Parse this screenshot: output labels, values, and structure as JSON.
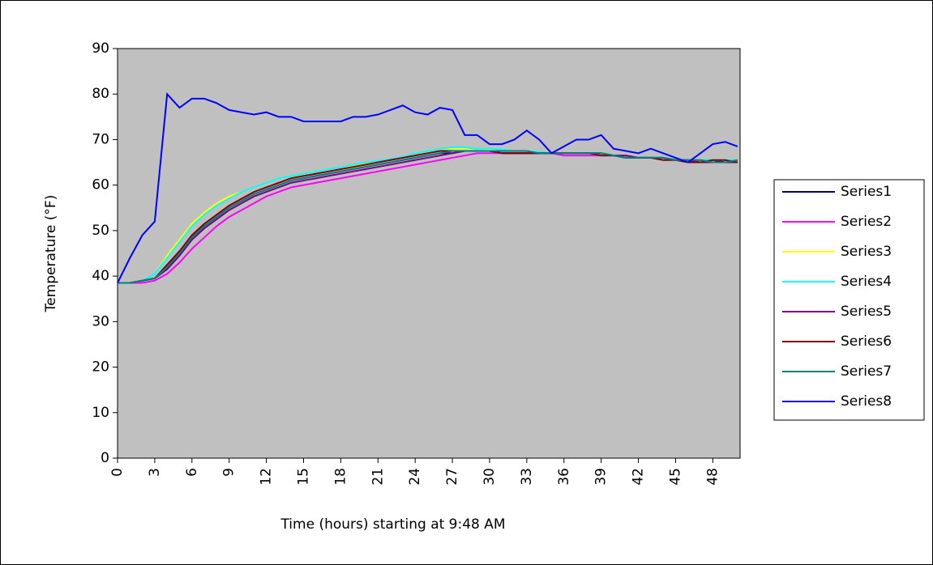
{
  "chart_data": {
    "type": "line",
    "x_label": "Time (hours) starting at 9:48 AM",
    "y_label": "Temperature (°F)",
    "x": [
      0,
      1,
      2,
      3,
      4,
      5,
      6,
      7,
      8,
      9,
      10,
      11,
      12,
      13,
      14,
      15,
      16,
      17,
      18,
      19,
      20,
      21,
      22,
      23,
      24,
      25,
      26,
      27,
      28,
      29,
      30,
      31,
      32,
      33,
      34,
      35,
      36,
      37,
      38,
      39,
      40,
      41,
      42,
      43,
      44,
      45,
      46,
      47,
      48,
      49,
      50
    ],
    "xlim": [
      0,
      50.2
    ],
    "xticks": [
      0,
      3,
      6,
      9,
      12,
      15,
      18,
      21,
      24,
      27,
      30,
      33,
      36,
      39,
      42,
      45,
      48
    ],
    "ylim": [
      0,
      90
    ],
    "yticks": [
      0,
      10,
      20,
      30,
      40,
      50,
      60,
      70,
      80,
      90
    ],
    "plot_background": "#c0c0c0",
    "legend": "right",
    "series": [
      {
        "name": "Series1",
        "color": "#000080",
        "values": [
          38.5,
          38.5,
          39,
          39.5,
          42,
          45,
          48.5,
          51,
          53,
          55,
          56.5,
          58,
          59,
          60,
          61,
          61.5,
          62,
          62.5,
          63,
          63.5,
          64,
          64.5,
          65,
          65.5,
          66,
          66.5,
          67,
          67,
          67.5,
          67.5,
          67.5,
          67,
          67,
          67,
          67,
          67,
          67,
          67,
          67,
          67,
          66.5,
          66.5,
          66,
          66,
          66,
          65.5,
          65.5,
          65.5,
          65.5,
          65,
          65
        ]
      },
      {
        "name": "Series2",
        "color": "#ff00ff",
        "values": [
          38.5,
          38.5,
          38.5,
          39,
          40.5,
          43,
          46,
          48.5,
          51,
          53,
          54.5,
          56,
          57.5,
          58.5,
          59.5,
          60,
          60.5,
          61,
          61.5,
          62,
          62.5,
          63,
          63.5,
          64,
          64.5,
          65,
          65.5,
          66,
          66.5,
          67,
          67,
          67,
          67,
          67,
          67,
          67,
          66.5,
          66.5,
          66.5,
          66.5,
          66.5,
          66,
          66,
          66,
          66,
          65.5,
          65.5,
          65,
          65,
          65,
          65
        ]
      },
      {
        "name": "Series3",
        "color": "#ffff00",
        "values": [
          38.5,
          38.5,
          39,
          40.5,
          44.5,
          48,
          51.5,
          54,
          56,
          57.5,
          58.5,
          59.5,
          60.5,
          61.5,
          62,
          62.5,
          63,
          63.5,
          64,
          64.3,
          64.7,
          65,
          65.5,
          66,
          67,
          67.5,
          68,
          68,
          68,
          68,
          67.8,
          67.5,
          67.5,
          67.5,
          67.3,
          67,
          67,
          67,
          67,
          67,
          66.5,
          66.5,
          66,
          66,
          66,
          65.5,
          65.5,
          65.5,
          65.5,
          65.5,
          65.5
        ]
      },
      {
        "name": "Series4",
        "color": "#00ffff",
        "values": [
          38.5,
          38.5,
          39,
          40.5,
          44,
          47.5,
          51,
          53.5,
          55.5,
          57,
          58.5,
          59.5,
          60.5,
          61.5,
          62,
          62.5,
          63,
          63.5,
          64,
          64.5,
          65,
          65.3,
          65.7,
          66.2,
          67,
          67.5,
          68,
          68.3,
          68.3,
          68,
          68,
          67.8,
          67.5,
          67.5,
          67.3,
          67,
          67,
          67,
          67,
          67,
          66.5,
          66.5,
          66,
          66,
          66,
          65.5,
          65.5,
          65.5,
          65.5,
          65.5,
          65.5
        ]
      },
      {
        "name": "Series5",
        "color": "#800080",
        "values": [
          38.5,
          38.5,
          39,
          39.5,
          41.5,
          44.5,
          48,
          50.5,
          52.5,
          54.5,
          56,
          57.5,
          58.5,
          59.5,
          60.5,
          61,
          61.5,
          62,
          62.5,
          63,
          63.5,
          64,
          64.5,
          65,
          65.5,
          66,
          66.5,
          67,
          67.5,
          67.5,
          67.5,
          67,
          67,
          67,
          67,
          67,
          67,
          67,
          67,
          67,
          66.5,
          66.5,
          66,
          66,
          66,
          65.5,
          65.5,
          65,
          65,
          65,
          65
        ]
      },
      {
        "name": "Series6",
        "color": "#800000",
        "values": [
          38.5,
          38.5,
          39,
          39.5,
          42.5,
          45.5,
          49,
          51.5,
          53.5,
          55.5,
          57,
          58.5,
          59.5,
          60.5,
          61.5,
          62,
          62.5,
          63,
          63.5,
          64,
          64.5,
          65,
          65.5,
          66,
          66.5,
          67,
          67.5,
          67.5,
          67.5,
          67.5,
          67.5,
          67,
          67,
          67,
          67,
          67,
          67,
          67,
          67,
          66.5,
          66.5,
          66,
          66,
          66,
          65.5,
          65.5,
          65,
          65,
          65.5,
          65.5,
          65
        ]
      },
      {
        "name": "Series7",
        "color": "#008080",
        "values": [
          38.5,
          38.5,
          39,
          39.5,
          42,
          45,
          48.5,
          51,
          53,
          55,
          56.5,
          58,
          59,
          60,
          61,
          61.5,
          62,
          62.5,
          63,
          63.5,
          64,
          64.5,
          65,
          65.5,
          66,
          66.5,
          67,
          67.5,
          67.5,
          67.5,
          67.5,
          67.5,
          67.5,
          67.5,
          67,
          67,
          67,
          67,
          67,
          67,
          66.5,
          66,
          66,
          66,
          66,
          65.5,
          65.5,
          65.5,
          65,
          65,
          65.5
        ]
      },
      {
        "name": "Series8",
        "color": "#0000ff",
        "values": [
          38.5,
          44,
          49,
          52,
          80,
          77,
          79,
          79,
          78,
          76.5,
          76,
          75.5,
          76,
          75,
          75,
          74,
          74,
          74,
          74,
          75,
          75,
          75.5,
          76.5,
          77.5,
          76,
          75.5,
          77,
          76.5,
          71,
          71,
          69,
          69,
          70,
          72,
          70,
          67,
          68.5,
          70,
          70,
          71,
          68,
          67.5,
          67,
          68,
          67,
          66,
          65,
          67,
          69,
          69.5,
          68.5
        ]
      }
    ]
  }
}
